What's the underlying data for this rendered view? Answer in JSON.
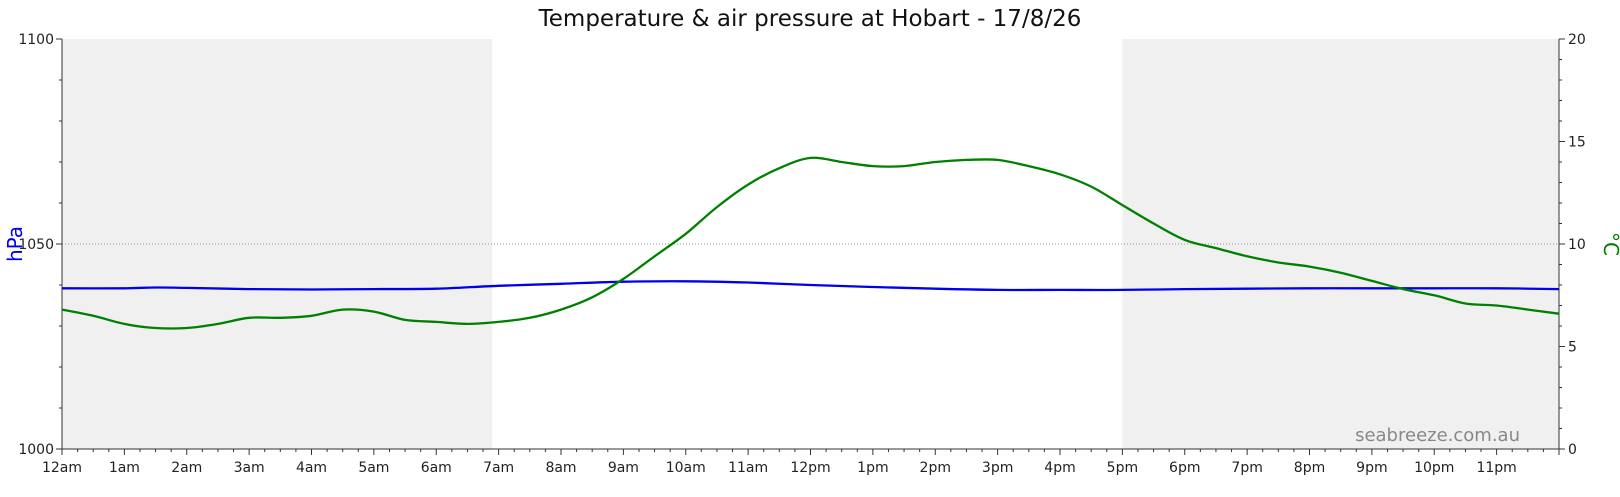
{
  "chart_data": {
    "type": "line",
    "title": "Temperature & air pressure at Hobart - 17/8/26",
    "xlabel": "",
    "x_tick_labels": [
      "12am",
      "1am",
      "2am",
      "3am",
      "4am",
      "5am",
      "6am",
      "7am",
      "8am",
      "9am",
      "10am",
      "11am",
      "12pm",
      "1pm",
      "2pm",
      "3pm",
      "4pm",
      "5pm",
      "6pm",
      "7pm",
      "8pm",
      "9pm",
      "10pm",
      "11pm"
    ],
    "xlim": [
      0,
      24
    ],
    "y_left": {
      "label": "hPa",
      "ylim": [
        1000,
        1100
      ],
      "ticks": [
        "1000",
        "1050",
        "1100"
      ]
    },
    "y_right": {
      "label": "°C",
      "ylim": [
        0,
        20
      ],
      "ticks": [
        "0",
        "5",
        "10",
        "15",
        "20"
      ]
    },
    "gridline_hpa": 1050,
    "night_shading_hours": [
      [
        0,
        6.9
      ],
      [
        17,
        24
      ]
    ],
    "colors": {
      "pressure": "#0000ee",
      "temperature": "#008000",
      "night": "#f0f0f0",
      "axis": "#333333"
    },
    "series": [
      {
        "axis": "left",
        "x": [
          0,
          1,
          1.5,
          2,
          3,
          4,
          5,
          6,
          7,
          8,
          9,
          10,
          11,
          12,
          13,
          14,
          15,
          16,
          17,
          18,
          19,
          20,
          21,
          22,
          23,
          24
        ],
        "values": [
          1039.2,
          1039.2,
          1039.4,
          1039.3,
          1039.0,
          1038.9,
          1039.0,
          1039.1,
          1039.8,
          1040.3,
          1040.8,
          1040.9,
          1040.6,
          1040.0,
          1039.5,
          1039.1,
          1038.8,
          1038.8,
          1038.8,
          1039.0,
          1039.1,
          1039.2,
          1039.2,
          1039.2,
          1039.2,
          1039.0
        ]
      },
      {
        "axis": "right",
        "x": [
          0,
          0.5,
          1,
          1.5,
          2,
          2.5,
          3,
          3.5,
          4,
          4.5,
          5,
          5.5,
          6,
          6.5,
          7,
          7.5,
          8,
          8.5,
          9,
          9.5,
          10,
          10.5,
          11,
          11.5,
          12,
          12.5,
          13,
          13.5,
          14,
          14.5,
          15,
          15.5,
          16,
          16.5,
          17,
          17.5,
          18,
          18.5,
          19,
          19.5,
          20,
          20.5,
          21,
          21.5,
          22,
          22.5,
          23,
          23.5,
          24
        ],
        "values": [
          6.8,
          6.5,
          6.1,
          5.9,
          5.9,
          6.1,
          6.4,
          6.4,
          6.5,
          6.8,
          6.7,
          6.3,
          6.2,
          6.1,
          6.2,
          6.4,
          6.8,
          7.4,
          8.3,
          9.4,
          10.5,
          11.8,
          12.9,
          13.7,
          14.2,
          14.0,
          13.8,
          13.8,
          14.0,
          14.1,
          14.1,
          13.8,
          13.4,
          12.8,
          11.9,
          11.0,
          10.2,
          9.8,
          9.4,
          9.1,
          8.9,
          8.6,
          8.2,
          7.8,
          7.5,
          7.1,
          7.0,
          6.8,
          6.6
        ]
      }
    ]
  },
  "watermark": "seabreeze.com.au"
}
